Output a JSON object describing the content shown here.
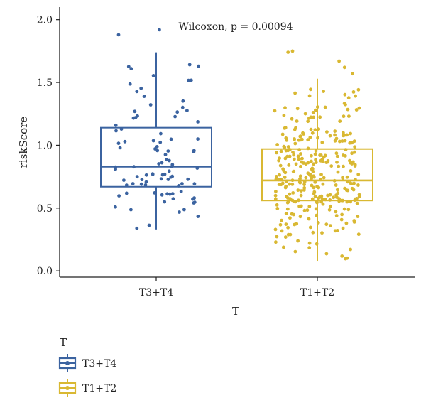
{
  "chart_data": {
    "type": "boxplot",
    "annotation": "Wilcoxon, p = 0.00094",
    "xlabel": "T",
    "ylabel": "riskScore",
    "ylim": [
      -0.05,
      2.1
    ],
    "yticks": [
      0.0,
      0.5,
      1.0,
      1.5,
      2.0
    ],
    "ytick_labels": [
      "0.0",
      "0.5",
      "1.0",
      "1.5",
      "2.0"
    ],
    "categories": [
      "T3+T4",
      "T1+T2"
    ],
    "legend": {
      "title": "T",
      "placement": "bottom-left",
      "entries": [
        "T3+T4",
        "T1+T2"
      ]
    },
    "groups": [
      {
        "name": "T3+T4",
        "color": "#3b63a0",
        "n_points": 95,
        "seed": 11,
        "min": 0.33,
        "q1": 0.67,
        "median": 0.83,
        "q3": 1.14,
        "max": 1.74,
        "outliers": [
          1.88,
          1.92
        ]
      },
      {
        "name": "T1+T2",
        "color": "#d9b832",
        "n_points": 330,
        "seed": 29,
        "min": 0.08,
        "q1": 0.56,
        "median": 0.72,
        "q3": 0.97,
        "max": 1.53,
        "outliers": [
          1.57,
          1.62,
          1.67,
          1.74,
          1.75
        ]
      }
    ]
  }
}
